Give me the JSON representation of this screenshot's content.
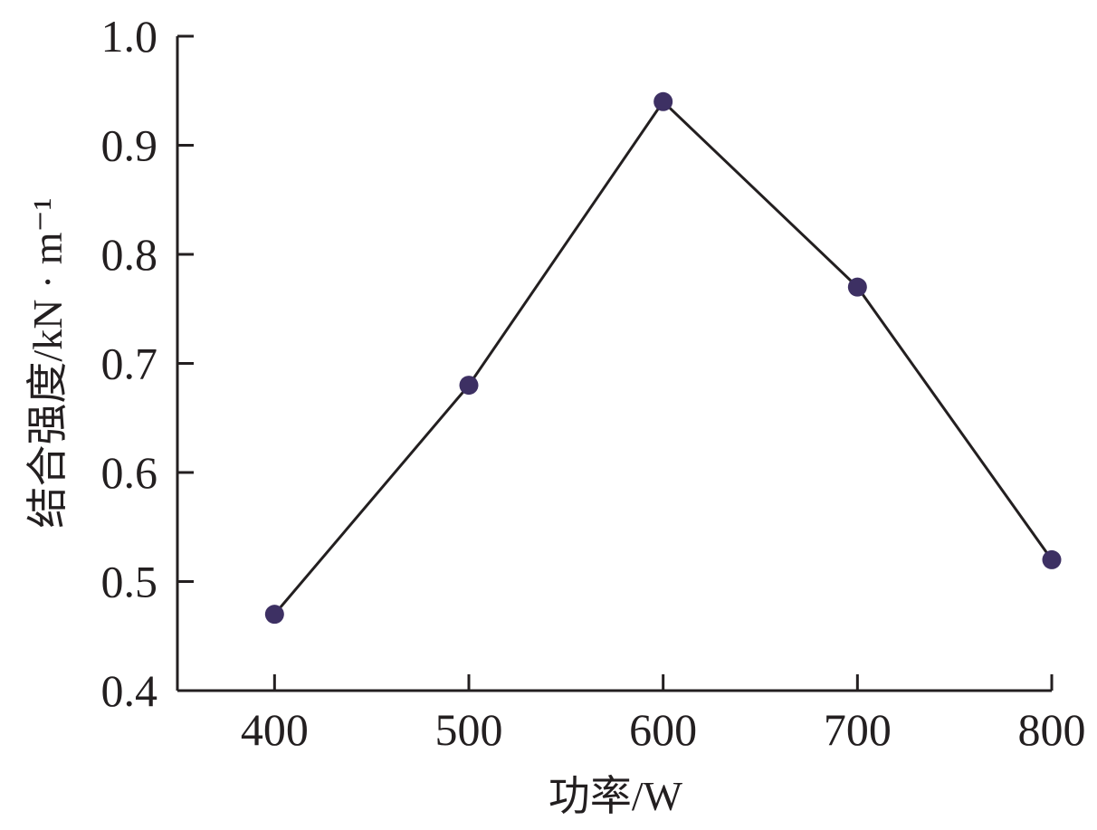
{
  "chart_data": {
    "type": "line",
    "title": "",
    "xlabel": "功率/W",
    "ylabel": "结合强度/kN · m⁻¹",
    "x": [
      400,
      500,
      600,
      700,
      800
    ],
    "x_ticks": [
      "400",
      "500",
      "600",
      "700",
      "800"
    ],
    "xlim": [
      350,
      800
    ],
    "ylim": [
      0.4,
      1.0
    ],
    "y_ticks": [
      "0.4",
      "0.5",
      "0.6",
      "0.7",
      "0.8",
      "0.9",
      "1.0"
    ],
    "series": [
      {
        "values": [
          0.47,
          0.68,
          0.94,
          0.77,
          0.52
        ]
      }
    ],
    "grid": false,
    "legend": "none",
    "colors": {
      "line": "#231f20",
      "marker": "#3d3063",
      "axis": "#231f20"
    }
  }
}
